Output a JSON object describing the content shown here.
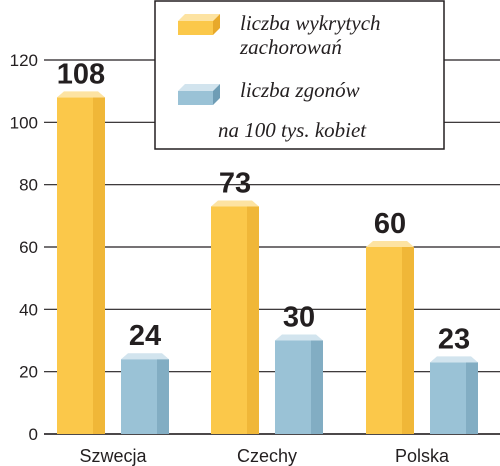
{
  "chart_data": {
    "type": "bar",
    "categories": [
      "Szwecja",
      "Czechy",
      "Polska"
    ],
    "series": [
      {
        "name": "liczba wykrytych zachorowań",
        "values": [
          108,
          73,
          60
        ],
        "color": "#fbc84a"
      },
      {
        "name": "liczba zgonów",
        "values": [
          24,
          30,
          23
        ],
        "color": "#9ac2d6"
      }
    ],
    "legend": {
      "items": [
        {
          "lines": [
            "liczba  wykrytych",
            "zachorowań"
          ]
        },
        {
          "lines": [
            "liczba zgonów"
          ]
        }
      ],
      "note": "na 100 tys. kobiet",
      "placement": "top-right"
    },
    "y_ticks": [
      "0",
      "20",
      "40",
      "60",
      "80",
      "100",
      "120"
    ],
    "ylim": [
      0,
      120
    ],
    "grid": true,
    "colors": {
      "bar1_front": "#fbc84a",
      "bar1_top": "#fde3a2",
      "bar1_side": "#e8a92a",
      "bar2_front": "#9ac2d6",
      "bar2_top": "#d2e4ee",
      "bar2_side": "#6f9db5",
      "grid": "#231f20",
      "text": "#231f20"
    }
  }
}
